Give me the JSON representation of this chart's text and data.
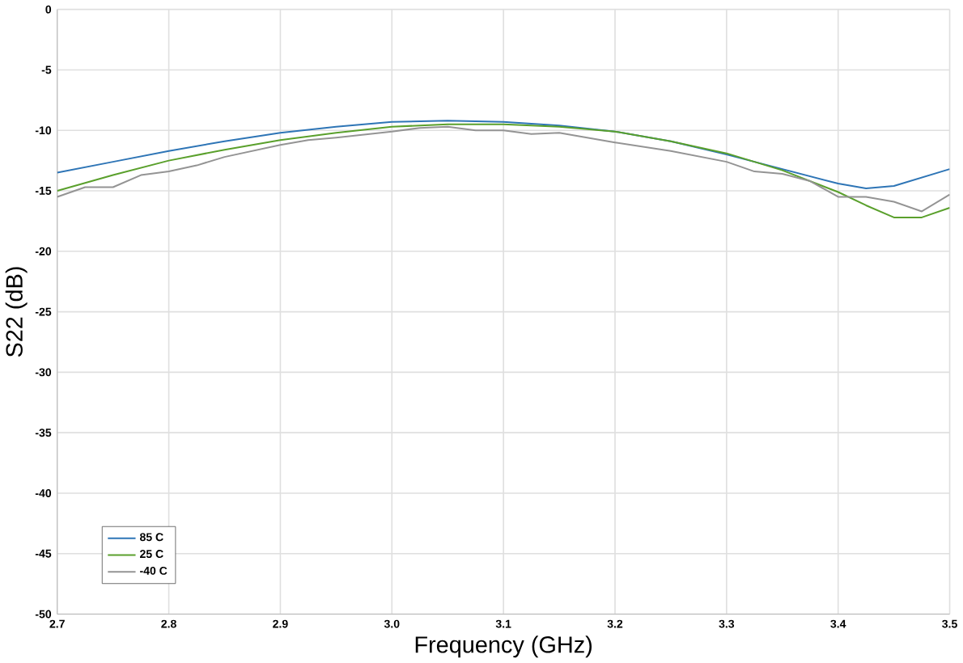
{
  "chart_data": {
    "type": "line",
    "xlabel": "Frequency (GHz)",
    "ylabel": "S22 (dB)",
    "xlim": [
      2.7,
      3.5
    ],
    "xticks": [
      {
        "value": 2.7,
        "label": "2.7"
      },
      {
        "value": 2.8,
        "label": "2.8"
      },
      {
        "value": 2.9,
        "label": "2.9"
      },
      {
        "value": 3.0,
        "label": "3.0"
      },
      {
        "value": 3.1,
        "label": "3.1"
      },
      {
        "value": 3.2,
        "label": "3.2"
      },
      {
        "value": 3.3,
        "label": "3.3"
      },
      {
        "value": 3.4,
        "label": "3.4"
      },
      {
        "value": 3.5,
        "label": "3.5"
      }
    ],
    "ylim": [
      -50,
      0
    ],
    "yticks": [
      -50,
      -45,
      -40,
      -35,
      -30,
      -25,
      -20,
      -15,
      -10,
      -5,
      0
    ],
    "grid": true,
    "legend": "bottom left",
    "marker": "none",
    "line_style": "solid",
    "series": [
      {
        "name": "85 C",
        "color": "#2e75b6",
        "x": [
          2.7,
          2.75,
          2.8,
          2.85,
          2.9,
          2.95,
          3.0,
          3.05,
          3.1,
          3.15,
          3.2,
          3.25,
          3.3,
          3.35,
          3.4,
          3.425,
          3.45,
          3.5
        ],
        "values": [
          -13.5,
          -12.6,
          -11.7,
          -10.9,
          -10.2,
          -9.7,
          -9.3,
          -9.2,
          -9.3,
          -9.6,
          -10.1,
          -10.9,
          -12.0,
          -13.2,
          -14.4,
          -14.8,
          -14.6,
          -13.2
        ]
      },
      {
        "name": "25 C",
        "color": "#5aa02c",
        "x": [
          2.7,
          2.75,
          2.8,
          2.85,
          2.9,
          2.95,
          3.0,
          3.05,
          3.1,
          3.15,
          3.2,
          3.25,
          3.3,
          3.35,
          3.4,
          3.425,
          3.45,
          3.475,
          3.5
        ],
        "values": [
          -15.0,
          -13.7,
          -12.5,
          -11.6,
          -10.8,
          -10.2,
          -9.7,
          -9.5,
          -9.5,
          -9.7,
          -10.1,
          -10.9,
          -11.9,
          -13.3,
          -15.1,
          -16.2,
          -17.2,
          -17.2,
          -16.4
        ]
      },
      {
        "name": "-40 C",
        "color": "#949494",
        "x": [
          2.7,
          2.725,
          2.75,
          2.775,
          2.8,
          2.825,
          2.85,
          2.9,
          2.925,
          2.95,
          3.0,
          3.025,
          3.05,
          3.075,
          3.1,
          3.125,
          3.15,
          3.2,
          3.25,
          3.3,
          3.325,
          3.35,
          3.375,
          3.4,
          3.425,
          3.45,
          3.475,
          3.5
        ],
        "values": [
          -15.5,
          -14.7,
          -14.7,
          -13.7,
          -13.4,
          -12.9,
          -12.2,
          -11.2,
          -10.8,
          -10.6,
          -10.1,
          -9.8,
          -9.7,
          -10.0,
          -10.0,
          -10.3,
          -10.2,
          -11.0,
          -11.7,
          -12.6,
          -13.4,
          -13.6,
          -14.2,
          -15.5,
          -15.5,
          -15.9,
          -16.7,
          -15.3
        ]
      }
    ]
  }
}
